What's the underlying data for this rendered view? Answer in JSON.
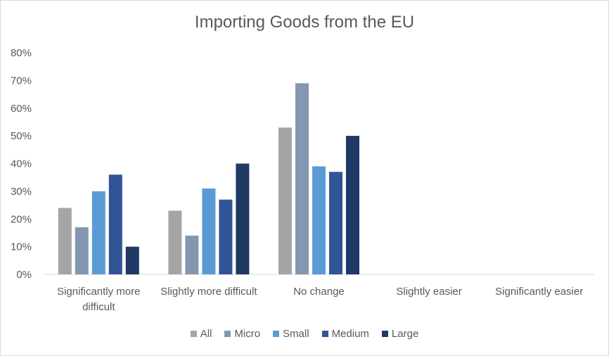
{
  "chart_data": {
    "type": "bar",
    "title": "Importing Goods from the EU",
    "categories": [
      "Significantly more difficult",
      "Slightly more difficult",
      "No change",
      "Slightly easier",
      "Significantly easier"
    ],
    "category_lines": [
      [
        "Significantly more",
        "difficult"
      ],
      [
        "Slightly more difficult"
      ],
      [
        "No change"
      ],
      [
        "Slightly easier"
      ],
      [
        "Significantly easier"
      ]
    ],
    "series": [
      {
        "name": "All",
        "color": "#a5a5a5",
        "values": [
          24,
          23,
          53,
          null,
          null
        ]
      },
      {
        "name": "Micro",
        "color": "#8497b0",
        "values": [
          17,
          14,
          69,
          null,
          null
        ]
      },
      {
        "name": "Small",
        "color": "#5b9bd5",
        "values": [
          30,
          31,
          39,
          null,
          null
        ]
      },
      {
        "name": "Medium",
        "color": "#2f5597",
        "values": [
          36,
          27,
          37,
          null,
          null
        ]
      },
      {
        "name": "Large",
        "color": "#203864",
        "values": [
          10,
          40,
          50,
          null,
          null
        ]
      }
    ],
    "ylim": [
      0,
      80
    ],
    "yticks": [
      "0%",
      "10%",
      "20%",
      "30%",
      "40%",
      "50%",
      "60%",
      "70%",
      "80%"
    ],
    "xlabel": "",
    "ylabel": "",
    "grid": false,
    "legend_position": "bottom"
  }
}
